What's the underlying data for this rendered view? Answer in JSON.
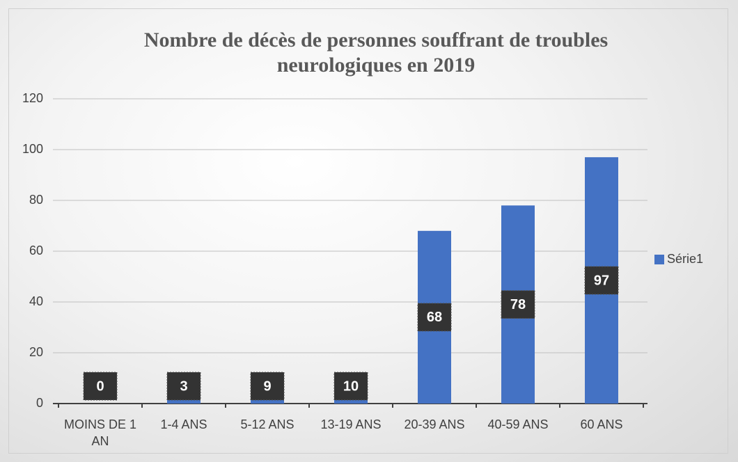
{
  "chart_data": {
    "type": "bar",
    "title": "Nombre de décès de personnes souffrant de troubles neurologiques en 2019",
    "categories": [
      "MOINS DE 1 AN",
      "1-4 ANS",
      "5-12 ANS",
      "13-19 ANS",
      "20-39 ANS",
      "40-59 ANS",
      "60 ANS"
    ],
    "series": [
      {
        "name": "Série1",
        "color": "#4472c4",
        "values": [
          0,
          3,
          9,
          10,
          68,
          78,
          97
        ]
      }
    ],
    "ylim": [
      0,
      120
    ],
    "yticks": [
      0,
      20,
      40,
      60,
      80,
      100,
      120
    ],
    "grid": true,
    "legend": "right"
  }
}
